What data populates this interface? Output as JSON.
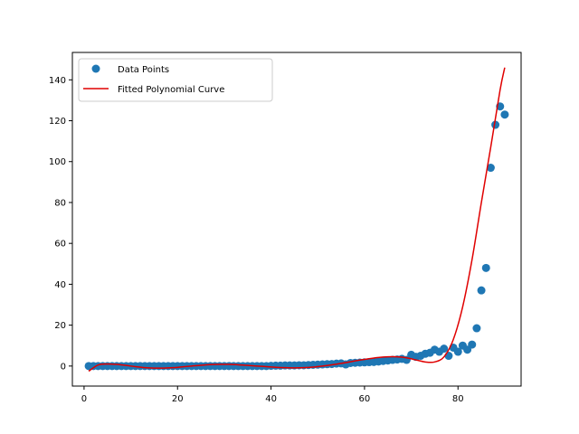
{
  "chart_data": {
    "type": "scatter",
    "title": "",
    "xlabel": "",
    "ylabel": "",
    "xlim": [
      -2.5,
      93.5
    ],
    "ylim": [
      -9.8,
      153.4
    ],
    "xticks": [
      0,
      20,
      40,
      60,
      80
    ],
    "yticks": [
      0,
      20,
      40,
      60,
      80,
      100,
      120,
      140
    ],
    "grid": false,
    "legend_position": "top-left",
    "colors": {
      "points": "#1f77b4",
      "curve": "#e00000"
    },
    "legend": {
      "points_label": "Data Points",
      "curve_label": "Fitted Polynomial Curve"
    },
    "series": [
      {
        "name": "Data Points",
        "kind": "scatter",
        "x": [
          1,
          2,
          3,
          4,
          5,
          6,
          7,
          8,
          9,
          10,
          11,
          12,
          13,
          14,
          15,
          16,
          17,
          18,
          19,
          20,
          21,
          22,
          23,
          24,
          25,
          26,
          27,
          28,
          29,
          30,
          31,
          32,
          33,
          34,
          35,
          36,
          37,
          38,
          39,
          40,
          41,
          42,
          43,
          44,
          45,
          46,
          47,
          48,
          49,
          50,
          51,
          52,
          53,
          54,
          55,
          56,
          57,
          58,
          59,
          60,
          61,
          62,
          63,
          64,
          65,
          66,
          67,
          68,
          69,
          70,
          71,
          72,
          73,
          74,
          75,
          76,
          77,
          78,
          79,
          80,
          81,
          82,
          83,
          84,
          85,
          86,
          87,
          88,
          89,
          90
        ],
        "y": [
          0.0,
          0.0,
          0.0,
          0.0,
          0.0,
          0.0,
          0.0,
          0.0,
          0.0,
          0.0,
          0.0,
          0.0,
          0.0,
          0.0,
          0.0,
          0.0,
          0.0,
          0.0,
          0.0,
          0.0,
          0.0,
          0.0,
          0.0,
          0.0,
          0.0,
          0.0,
          0.0,
          0.0,
          0.0,
          0.0,
          0.0,
          0.0,
          0.0,
          0.0,
          0.0,
          0.0,
          0.0,
          0.0,
          0.0,
          0.1,
          0.2,
          0.2,
          0.3,
          0.3,
          0.3,
          0.4,
          0.4,
          0.5,
          0.6,
          0.7,
          0.8,
          0.9,
          1.0,
          1.2,
          1.3,
          0.8,
          1.5,
          1.6,
          1.7,
          1.8,
          1.9,
          2.0,
          2.2,
          2.5,
          2.7,
          3.0,
          3.2,
          3.5,
          3.0,
          5.5,
          4.5,
          5.0,
          6.0,
          6.5,
          8.0,
          7.0,
          8.5,
          5.0,
          9.0,
          7.0,
          10.0,
          8.0,
          10.5,
          18.5,
          37.0,
          48.0,
          97.0,
          118.0,
          127.0,
          123.0
        ]
      },
      {
        "name": "Fitted Polynomial Curve",
        "kind": "line",
        "x": [
          1,
          3,
          5,
          7,
          9,
          11,
          13,
          15,
          17,
          19,
          21,
          23,
          25,
          27,
          29,
          31,
          33,
          35,
          37,
          39,
          41,
          43,
          45,
          47,
          49,
          51,
          53,
          55,
          57,
          59,
          61,
          63,
          65,
          67,
          69,
          71,
          73,
          75,
          77,
          79,
          81,
          83,
          85,
          87,
          89,
          90
        ],
        "y": [
          -2.5,
          0.5,
          1.0,
          0.8,
          0.3,
          -0.3,
          -0.8,
          -1.0,
          -1.0,
          -0.8,
          -0.4,
          0.0,
          0.4,
          0.7,
          0.8,
          0.8,
          0.6,
          0.3,
          0.0,
          -0.3,
          -0.6,
          -0.8,
          -0.9,
          -0.8,
          -0.5,
          0.0,
          0.6,
          1.3,
          2.1,
          2.9,
          3.6,
          4.2,
          4.5,
          4.5,
          4.0,
          3.0,
          2.0,
          2.0,
          4.5,
          13.0,
          29.0,
          52.0,
          80.0,
          107.0,
          135.0,
          146.0
        ]
      }
    ]
  }
}
